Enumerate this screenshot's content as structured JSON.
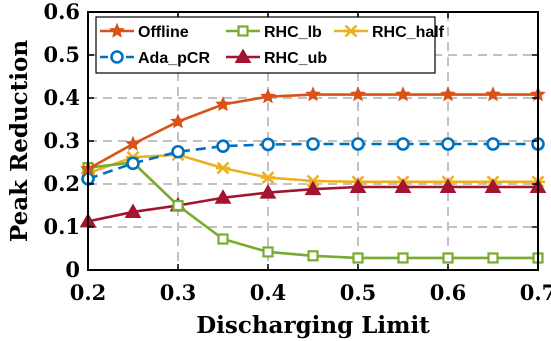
{
  "chart_data": {
    "type": "line",
    "xlabel": "Discharging Limit",
    "ylabel": "Peak Reduction",
    "xlim": [
      0.2,
      0.7
    ],
    "ylim": [
      0,
      0.6
    ],
    "xticks": [
      "0.2",
      "0.3",
      "0.4",
      "0.5",
      "0.6",
      "0.7"
    ],
    "yticks": [
      "0",
      "0.1",
      "0.2",
      "0.3",
      "0.4",
      "0.5",
      "0.6"
    ],
    "grid": true,
    "legend_position": "top-left",
    "x": [
      0.2,
      0.25,
      0.3,
      0.35,
      0.4,
      0.45,
      0.5,
      0.55,
      0.6,
      0.65,
      0.7
    ],
    "series": [
      {
        "name": "Offline",
        "color": "#D95319",
        "marker": "star",
        "line": "solid",
        "values": [
          0.235,
          0.293,
          0.345,
          0.385,
          0.403,
          0.408,
          0.408,
          0.408,
          0.408,
          0.408,
          0.408
        ]
      },
      {
        "name": "Ada_pCR",
        "color": "#0072BD",
        "marker": "circle",
        "line": "dashed",
        "values": [
          0.212,
          0.248,
          0.275,
          0.288,
          0.292,
          0.293,
          0.293,
          0.293,
          0.293,
          0.293,
          0.293
        ]
      },
      {
        "name": "RHC_lb",
        "color": "#77AC30",
        "marker": "square",
        "line": "solid",
        "values": [
          0.238,
          0.25,
          0.15,
          0.072,
          0.042,
          0.033,
          0.028,
          0.028,
          0.028,
          0.028,
          0.028
        ]
      },
      {
        "name": "RHC_ub",
        "color": "#A2142F",
        "marker": "triangle",
        "line": "solid",
        "values": [
          0.113,
          0.135,
          0.15,
          0.168,
          0.18,
          0.188,
          0.193,
          0.193,
          0.193,
          0.193,
          0.193
        ]
      },
      {
        "name": "RHC_half",
        "color": "#EDB120",
        "marker": "x",
        "line": "solid",
        "values": [
          0.225,
          0.262,
          0.268,
          0.237,
          0.215,
          0.207,
          0.205,
          0.205,
          0.205,
          0.205,
          0.205
        ]
      }
    ]
  }
}
